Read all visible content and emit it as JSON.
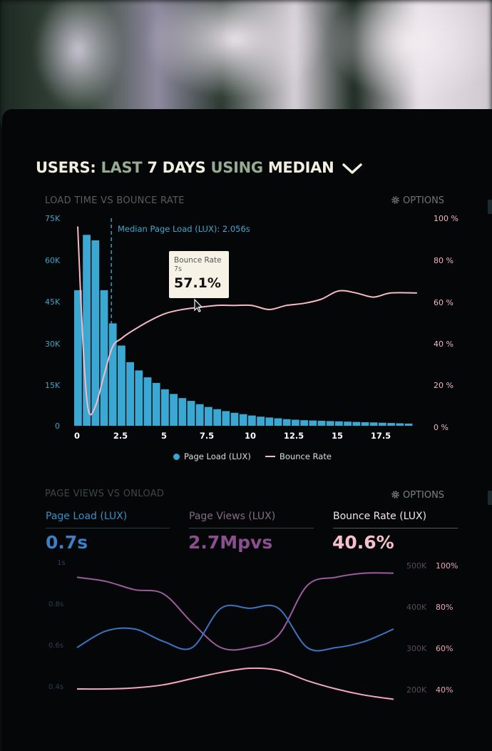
{
  "header": {
    "w1": "USERS:",
    "g1": "LAST",
    "w2": "7 DAYS",
    "g2": "USING",
    "w3": "MEDIAN"
  },
  "chart1": {
    "section_title": "LOAD TIME VS BOUNCE RATE",
    "options_label": "OPTIONS",
    "median_label": "Median Page Load (LUX): 2.056s",
    "tooltip": {
      "title": "Bounce Rate",
      "sub": "7s",
      "value": "57.1%"
    },
    "legend": {
      "series1": "Page Load (LUX)",
      "series2": "Bounce Rate"
    }
  },
  "chart2": {
    "section_title": "PAGE VIEWS VS ONLOAD",
    "options_label": "OPTIONS",
    "metrics": [
      {
        "label": "Page Load (LUX)",
        "value": "0.7s"
      },
      {
        "label": "Page Views (LUX)",
        "value": "2.7Mpvs"
      },
      {
        "label": "Bounce Rate (LUX)",
        "value": "40.6%"
      }
    ],
    "left_ticks": [
      "1s",
      "0.8s",
      "0.6s",
      "0.4s"
    ],
    "mid_ticks": [
      "500K",
      "400K",
      "300K",
      "200K"
    ],
    "right_ticks": [
      "100%",
      "80%",
      "60%",
      "40%"
    ]
  },
  "colors": {
    "blue": "#3aa8d3",
    "pink": "#f5b9c5",
    "purple": "#9b5c9e",
    "header_green": "#96ab92"
  },
  "chart_data": [
    {
      "type": "bar",
      "title": "LOAD TIME VS BOUNCE RATE",
      "xlabel": "",
      "ylabel": "",
      "x_ticks": [
        "0",
        "2.5",
        "5",
        "7.5",
        "10",
        "12.5",
        "15",
        "17.5"
      ],
      "y_left_ticks": [
        "0",
        "15K",
        "30K",
        "45K",
        "60K",
        "75K"
      ],
      "y_right_ticks": [
        "0 %",
        "20 %",
        "40 %",
        "60 %",
        "80 %",
        "100 %"
      ],
      "ylim": [
        0,
        75000
      ],
      "y2lim": [
        0,
        100
      ],
      "median_x": 2.056,
      "series": [
        {
          "name": "Page Load (LUX)",
          "kind": "bar",
          "x": [
            0,
            0.5,
            1,
            1.5,
            2,
            2.5,
            3,
            3.5,
            4,
            4.5,
            5,
            5.5,
            6,
            6.5,
            7,
            7.5,
            8,
            8.5,
            9,
            9.5,
            10,
            10.5,
            11,
            11.5,
            12,
            12.5,
            13,
            13.5,
            14,
            14.5,
            15,
            15.5,
            16,
            16.5,
            17,
            17.5,
            18,
            18.5,
            19
          ],
          "values": [
            49000,
            69000,
            67000,
            49000,
            37000,
            29000,
            23000,
            20000,
            17500,
            15500,
            13200,
            11500,
            10000,
            9000,
            7800,
            6800,
            6000,
            5300,
            4700,
            4200,
            3700,
            3300,
            3000,
            2700,
            2400,
            2200,
            2000,
            1900,
            1800,
            1700,
            1600,
            1500,
            1400,
            1300,
            1200,
            1100,
            1000,
            900,
            800
          ]
        },
        {
          "name": "Bounce Rate",
          "kind": "line",
          "x": [
            0,
            0.3,
            0.6,
            1,
            1.5,
            2,
            2.5,
            3,
            4,
            5,
            6,
            7,
            8,
            9,
            10,
            11,
            12,
            13,
            14,
            15,
            16,
            17,
            18,
            19.5
          ],
          "values": [
            96,
            40,
            8,
            9,
            24,
            38,
            42,
            45,
            50,
            54,
            56,
            57.1,
            58,
            58,
            58,
            56,
            58,
            59,
            61,
            65,
            64,
            62,
            64,
            64
          ]
        }
      ]
    },
    {
      "type": "line",
      "title": "PAGE VIEWS VS ONLOAD",
      "xlabel": "",
      "ylabel": "",
      "y_left_ticks": [
        "1s",
        "0.8s",
        "0.6s",
        "0.4s"
      ],
      "y_mid_ticks": [
        "500K",
        "400K",
        "300K",
        "200K"
      ],
      "y_right_ticks": [
        "100%",
        "80%",
        "60%",
        "40%"
      ],
      "x": [
        0,
        1,
        2,
        3,
        4,
        5,
        6,
        7,
        8,
        9,
        10,
        11
      ],
      "series": [
        {
          "name": "Page Load (LUX)",
          "values": [
            0.6,
            0.68,
            0.69,
            0.63,
            0.6,
            0.79,
            0.79,
            0.79,
            0.6,
            0.6,
            0.63,
            0.69
          ]
        },
        {
          "name": "Page Views (LUX)",
          "values": [
            470000,
            460000,
            440000,
            430000,
            360000,
            300000,
            300000,
            330000,
            450000,
            470000,
            480000,
            480000
          ]
        },
        {
          "name": "Bounce Rate (LUX)",
          "values": [
            40,
            40,
            40.5,
            42,
            45,
            48,
            50,
            49,
            44,
            40,
            37,
            35
          ]
        }
      ]
    }
  ]
}
